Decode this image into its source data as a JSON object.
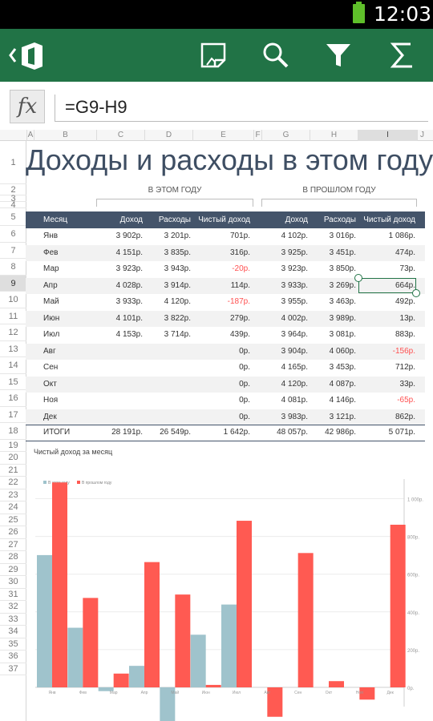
{
  "status": {
    "time": "12:03"
  },
  "toolbar": {
    "icons": [
      "back-icon",
      "office-logo-icon",
      "notes-icon",
      "search-icon",
      "filter-icon",
      "sum-icon"
    ]
  },
  "formula": {
    "fx_label": "fx",
    "value": "=G9-H9"
  },
  "columns": [
    "A",
    "B",
    "C",
    "D",
    "E",
    "F",
    "G",
    "H",
    "I",
    "J"
  ],
  "rows": [
    "1",
    "2",
    "3",
    "4",
    "5",
    "6",
    "7",
    "8",
    "9",
    "10",
    "11",
    "12",
    "13",
    "14",
    "15",
    "16",
    "17",
    "18",
    "19",
    "20",
    "21",
    "22",
    "23",
    "24",
    "25",
    "26",
    "27",
    "28",
    "29",
    "30",
    "31",
    "32",
    "33",
    "34",
    "35",
    "36",
    "37"
  ],
  "selected": {
    "column": "I",
    "row": "9"
  },
  "sheet": {
    "title": "Доходы и расходы в этом году",
    "group_this_year": "В ЭТОМ ГОДУ",
    "group_last_year": "В ПРОШЛОМ ГОДУ",
    "headers": [
      "Месяц",
      "Доход",
      "Расходы",
      "Чистый доход",
      "Доход",
      "Расходы",
      "Чистый доход"
    ],
    "rows": [
      [
        "Янв",
        "3 902р.",
        "3 201р.",
        "701р.",
        "4 102р.",
        "3 016р.",
        "1 086р."
      ],
      [
        "Фев",
        "4 151р.",
        "3 835р.",
        "316р.",
        "3 925р.",
        "3 451р.",
        "474р."
      ],
      [
        "Мар",
        "3 923р.",
        "3 943р.",
        "-20р.",
        "3 923р.",
        "3 850р.",
        "73р."
      ],
      [
        "Апр",
        "4 028р.",
        "3 914р.",
        "114р.",
        "3 933р.",
        "3 269р.",
        "664р."
      ],
      [
        "Май",
        "3 933р.",
        "4 120р.",
        "-187р.",
        "3 955р.",
        "3 463р.",
        "492р."
      ],
      [
        "Июн",
        "4 101р.",
        "3 822р.",
        "279р.",
        "4 002р.",
        "3 989р.",
        "13р."
      ],
      [
        "Июл",
        "4 153р.",
        "3 714р.",
        "439р.",
        "3 964р.",
        "3 081р.",
        "883р."
      ],
      [
        "Авг",
        "",
        "",
        "0р.",
        "3 904р.",
        "4 060р.",
        "-156р."
      ],
      [
        "Сен",
        "",
        "",
        "0р.",
        "4 165р.",
        "3 453р.",
        "712р."
      ],
      [
        "Окт",
        "",
        "",
        "0р.",
        "4 120р.",
        "4 087р.",
        "33р."
      ],
      [
        "Ноя",
        "",
        "",
        "0р.",
        "4 081р.",
        "4 146р.",
        "-65р."
      ],
      [
        "Дек",
        "",
        "",
        "0р.",
        "3 983р.",
        "3 121р.",
        "862р."
      ]
    ],
    "totals": [
      "ИТОГИ",
      "28 191р.",
      "26 549р.",
      "1 642р.",
      "48 057р.",
      "42 986р.",
      "5 071р."
    ]
  },
  "chart_data": {
    "type": "bar",
    "title": "Чистый доход за месяц",
    "categories": [
      "Янв",
      "Фев",
      "Мар",
      "Апр",
      "Май",
      "Июн",
      "Июл",
      "Авг",
      "Сен",
      "Окт",
      "Ноя",
      "Дек"
    ],
    "series": [
      {
        "name": "В этом году",
        "color": "#9fc3cc",
        "values": [
          701,
          316,
          -20,
          114,
          -187,
          279,
          439,
          0,
          0,
          0,
          0,
          0
        ]
      },
      {
        "name": "В прошлом году",
        "color": "#ff5a52",
        "values": [
          1086,
          474,
          73,
          664,
          492,
          13,
          883,
          -156,
          712,
          33,
          -65,
          862
        ]
      }
    ],
    "y_ticks": [
      "0р.",
      "200р.",
      "400р.",
      "600р.",
      "800р.",
      "1 000р."
    ],
    "ylim": [
      -200,
      1100
    ],
    "legend": "top-left"
  }
}
